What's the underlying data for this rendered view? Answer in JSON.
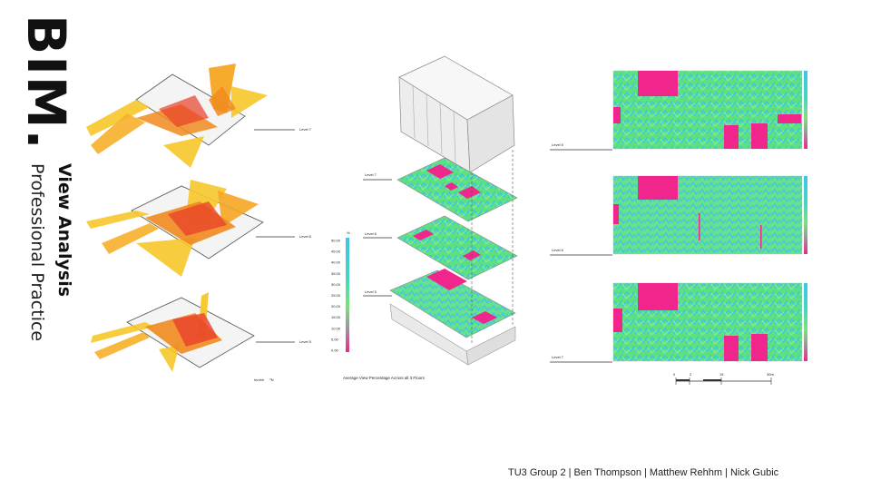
{
  "logo": "BIM.",
  "title": "View Analysis",
  "subtitle": "Professional Practice",
  "left_column": {
    "levels": [
      "Level 7",
      "Level 6",
      "Level 5"
    ],
    "north_label": "Inn/eh",
    "north_mark": "⁰N"
  },
  "middle_column": {
    "levels": [
      "Level 7",
      "Level 6",
      "Level 5"
    ],
    "caption": "Average View Percentage Across all 3 Floors",
    "legend": {
      "unit": "%",
      "ticks": [
        "50.00",
        "45.00",
        "40.00",
        "35.00",
        "30.00",
        "25.00",
        "20.00",
        "15.00",
        "10.00",
        "5.00",
        "0.00"
      ]
    }
  },
  "right_column": {
    "levels": [
      "Level 5",
      "Level 6",
      "Level 7"
    ],
    "scale_bar": [
      "0",
      "2",
      "15",
      "30m"
    ]
  },
  "credits": "TU3 Group 2  |  Ben Thompson  | Matthew Rehhm  |  Nick Gubic",
  "colors": {
    "wedge_yellow": "#f7c72a",
    "wedge_orange": "#f08a1f",
    "wedge_red": "#e8402a",
    "heat_green": "#59e07a",
    "heat_cyan": "#38c6e8",
    "heat_magenta": "#f0268c"
  }
}
